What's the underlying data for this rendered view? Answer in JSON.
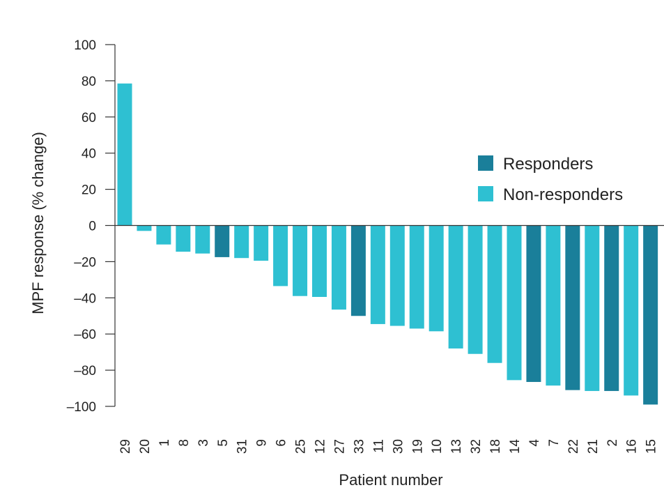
{
  "chart_data": {
    "type": "bar",
    "xlabel": "Patient number",
    "ylabel": "MPF response (% change)",
    "ylim": [
      -100,
      100
    ],
    "yticks": [
      100,
      80,
      60,
      40,
      20,
      0,
      -20,
      -40,
      -60,
      -80,
      -100
    ],
    "ytick_labels": [
      "100",
      "80",
      "60",
      "40",
      "20",
      "0",
      "–20",
      "–40",
      "–60",
      "–80",
      "–100"
    ],
    "categories": [
      "29",
      "20",
      "1",
      "8",
      "3",
      "5",
      "31",
      "9",
      "6",
      "25",
      "12",
      "27",
      "33",
      "11",
      "30",
      "19",
      "10",
      "13",
      "32",
      "18",
      "14",
      "4",
      "7",
      "22",
      "21",
      "2",
      "16",
      "15"
    ],
    "values": [
      78.5,
      -3,
      -10.5,
      -14.5,
      -15.5,
      -17.5,
      -18,
      -19.5,
      -33.5,
      -39,
      -39.5,
      -46.5,
      -50,
      -54.5,
      -55.5,
      -57,
      -58.5,
      -68,
      -71,
      -76,
      -85.5,
      -86.5,
      -88.5,
      -91,
      -91.5,
      -91.5,
      -94,
      -99
    ],
    "groups": [
      "Non-responders",
      "Non-responders",
      "Non-responders",
      "Non-responders",
      "Non-responders",
      "Responders",
      "Non-responders",
      "Non-responders",
      "Non-responders",
      "Non-responders",
      "Non-responders",
      "Non-responders",
      "Responders",
      "Non-responders",
      "Non-responders",
      "Non-responders",
      "Non-responders",
      "Non-responders",
      "Non-responders",
      "Non-responders",
      "Non-responders",
      "Responders",
      "Non-responders",
      "Responders",
      "Non-responders",
      "Responders",
      "Non-responders",
      "Responders"
    ],
    "legend": {
      "position": "right",
      "entries": [
        {
          "name": "Responders",
          "color": "#1a7f9a"
        },
        {
          "name": "Non-responders",
          "color": "#2ec0d2"
        }
      ]
    },
    "grid": false
  }
}
